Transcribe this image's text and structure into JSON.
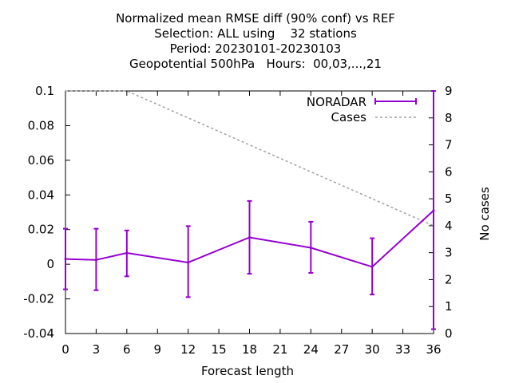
{
  "chart_data": {
    "type": "line",
    "title": [
      "Normalized mean RMSE diff (90% conf) vs REF",
      "Selection: ALL using    32 stations",
      "Period: 20230101-20230103",
      "Geopotential 500hPa   Hours:  00,03,...,21"
    ],
    "xlabel": "Forecast length",
    "ylabel": "",
    "y2label": "No cases",
    "xlim": [
      0,
      36
    ],
    "ylim": [
      -0.04,
      0.1
    ],
    "y2lim": [
      0,
      9
    ],
    "x_ticks": [
      0,
      3,
      6,
      9,
      12,
      15,
      18,
      21,
      24,
      27,
      30,
      33,
      36
    ],
    "y_ticks": [
      -0.04,
      -0.02,
      0,
      0.02,
      0.04,
      0.06,
      0.08,
      0.1
    ],
    "y_tick_labels": [
      "-0.04",
      "-0.02",
      "0",
      "0.02",
      "0.04",
      "0.06",
      "0.08",
      "0.1"
    ],
    "y2_ticks": [
      0,
      1,
      2,
      3,
      4,
      5,
      6,
      7,
      8,
      9
    ],
    "legend_position": "top-right",
    "series": [
      {
        "name": "NORADAR",
        "color": "#9400d3",
        "axis": "y",
        "x": [
          0,
          3,
          6,
          12,
          18,
          24,
          30,
          36
        ],
        "values": [
          0.003,
          0.0025,
          0.0065,
          0.001,
          0.0155,
          0.0095,
          -0.0015,
          0.031
        ],
        "err_low": [
          -0.0145,
          -0.015,
          -0.007,
          -0.019,
          -0.0055,
          -0.005,
          -0.0175,
          -0.0375
        ],
        "err_high": [
          0.0205,
          0.0205,
          0.0195,
          0.022,
          0.0365,
          0.0245,
          0.015,
          0.1
        ]
      },
      {
        "name": "Cases",
        "color": "#a0a0a0",
        "axis": "y2",
        "x": [
          0,
          3,
          6,
          12,
          18,
          24,
          30,
          36
        ],
        "values": [
          9,
          9,
          9,
          8,
          7,
          6,
          5,
          4
        ]
      }
    ]
  }
}
